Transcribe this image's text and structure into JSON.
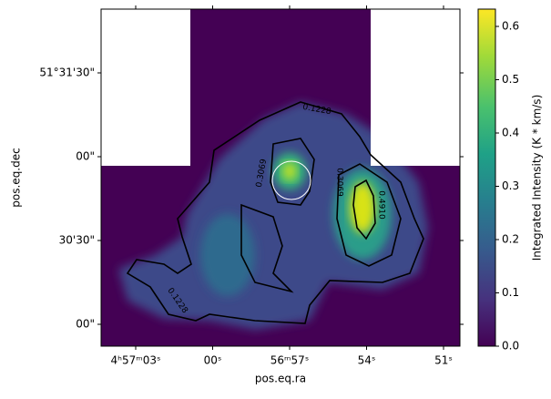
{
  "chart_data": {
    "type": "image",
    "xlabel": "pos.eq.ra",
    "ylabel": "pos.eq.dec",
    "xtick_labels": [
      "4ʰ57ᵐ03ˢ",
      "00ˢ",
      "56ᵐ57ˢ",
      "54ˢ",
      "51ˢ"
    ],
    "ytick_labels": [
      "51°31'30\"",
      "00\"",
      "30'30\"",
      "00\""
    ],
    "colorbar": {
      "label": "Integrated Intensity (K * km/s)",
      "colormap": "viridis",
      "lim": [
        0,
        0.6325
      ],
      "ticks": [
        {
          "value": 0,
          "label": "0.0"
        },
        {
          "value": 0.1,
          "label": "0.1"
        },
        {
          "value": 0.2,
          "label": "0.2"
        },
        {
          "value": 0.3,
          "label": "0.3"
        },
        {
          "value": 0.4,
          "label": "0.4"
        },
        {
          "value": 0.5,
          "label": "0.5"
        },
        {
          "value": 0.6,
          "label": "0.6"
        }
      ]
    },
    "contour_levels": [
      0.1228,
      0.3069,
      0.491
    ],
    "contour_value_labels": [
      "0.1228",
      "0.3069",
      "0.4910"
    ],
    "contour_color": "#000000"
  }
}
